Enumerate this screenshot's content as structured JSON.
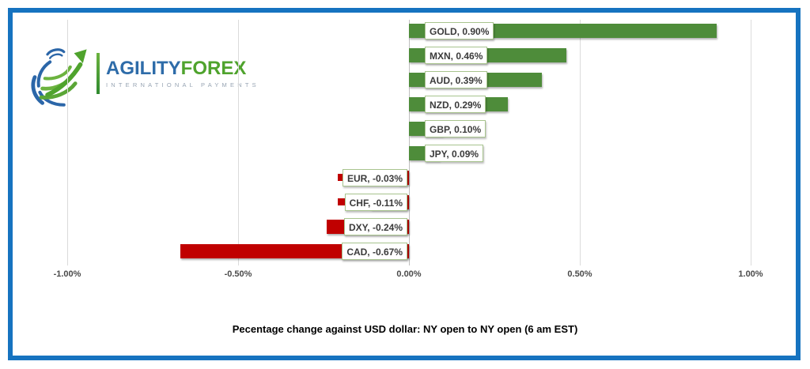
{
  "logo": {
    "brand_primary": "AGILITY",
    "brand_secondary": "FOREX",
    "tagline": "INTERNATIONAL PAYMENTS"
  },
  "chart_data": {
    "type": "bar",
    "orientation": "horizontal",
    "categories": [
      "GOLD",
      "MXN",
      "AUD",
      "NZD",
      "GBP",
      "JPY",
      "EUR",
      "CHF",
      "DXY",
      "CAD"
    ],
    "values": [
      0.9,
      0.46,
      0.39,
      0.29,
      0.1,
      0.09,
      -0.03,
      -0.11,
      -0.24,
      -0.67
    ],
    "bar_labels": [
      "GOLD, 0.90%",
      "MXN, 0.46%",
      "AUD, 0.39%",
      "NZD, 0.29%",
      "GBP, 0.10%",
      "JPY, 0.09%",
      "EUR, -0.03%",
      "CHF, -0.11%",
      "DXY, -0.24%",
      "CAD, -0.67%"
    ],
    "x_ticks": [
      {
        "label": "-1.00%",
        "value": -1.0
      },
      {
        "label": "-0.50%",
        "value": -0.5
      },
      {
        "label": "0.00%",
        "value": 0.0
      },
      {
        "label": "0.50%",
        "value": 0.5
      },
      {
        "label": "1.00%",
        "value": 1.0
      }
    ],
    "xlim": [
      -1.15,
      1.15
    ],
    "title": "Pecentage change against USD dollar: NY open to  NY open  (6 am EST)",
    "xlabel": "",
    "ylabel": "",
    "gridlines": true,
    "legend_position": "none",
    "positive_color": "#4E8C3A",
    "negative_color": "#C00000",
    "label_box_border_color": "#A8C48E",
    "border_color": "#1673C0"
  }
}
